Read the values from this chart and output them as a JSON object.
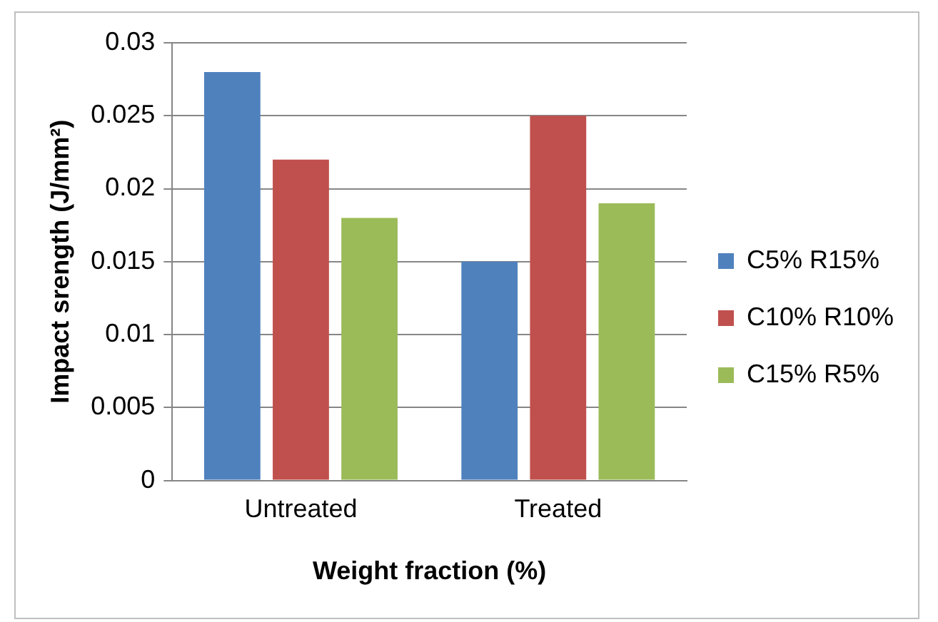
{
  "chart_data": {
    "type": "bar",
    "xlabel": "Weight fraction (%)",
    "ylabel": "Impact srength (J/mm²)",
    "categories": [
      "Untreated",
      "Treated"
    ],
    "series": [
      {
        "name": "C5% R15%",
        "color": "#4f81bd",
        "values": [
          0.028,
          0.015
        ]
      },
      {
        "name": "C10% R10%",
        "color": "#c0504d",
        "values": [
          0.022,
          0.025
        ]
      },
      {
        "name": "C15% R5%",
        "color": "#9bbb59",
        "values": [
          0.018,
          0.019
        ]
      }
    ],
    "ylim": [
      0,
      0.03
    ],
    "yticks": [
      0,
      0.005,
      0.01,
      0.015,
      0.02,
      0.025,
      0.03
    ],
    "grid": "y",
    "legend": "right"
  }
}
